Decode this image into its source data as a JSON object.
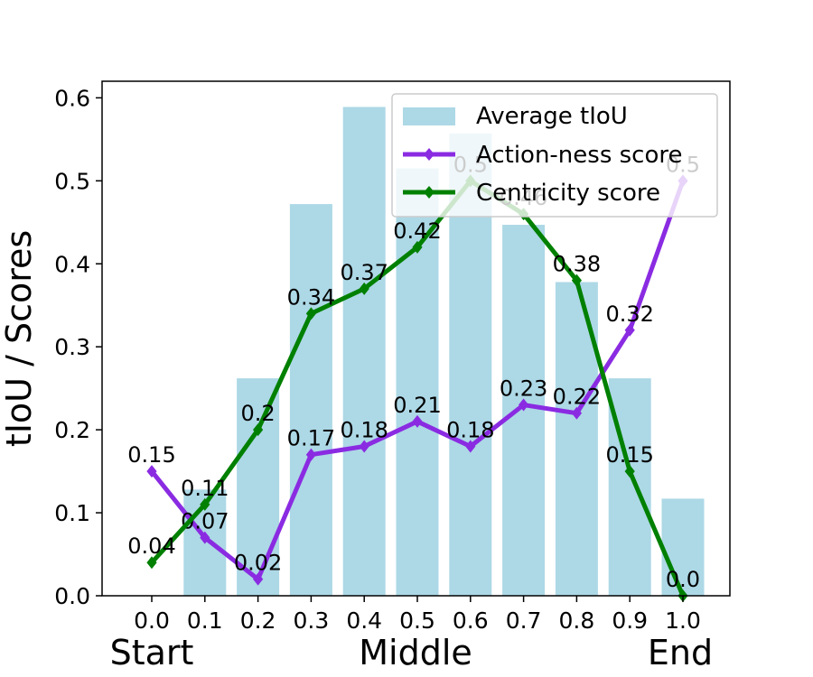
{
  "chart_data": {
    "type": "bar",
    "xlabel": "",
    "ylabel": "tIoU / Scores",
    "x": [
      0.0,
      0.1,
      0.2,
      0.3,
      0.4,
      0.5,
      0.6,
      0.7,
      0.8,
      0.9,
      1.0
    ],
    "x_tick_labels": [
      "0.0",
      "0.1",
      "0.2",
      "0.3",
      "0.4",
      "0.5",
      "0.6",
      "0.7",
      "0.8",
      "0.9",
      "1.0"
    ],
    "x_position_labels": [
      "Start",
      "Middle",
      "End"
    ],
    "ylim": [
      0,
      0.62
    ],
    "y_ticks": [
      0.0,
      0.1,
      0.2,
      0.3,
      0.4,
      0.5,
      0.6
    ],
    "y_tick_labels": [
      "0.0",
      "0.1",
      "0.2",
      "0.3",
      "0.4",
      "0.5",
      "0.6"
    ],
    "grid": false,
    "legend_position": "top-right",
    "series": [
      {
        "name": "Average tIoU",
        "kind": "bar",
        "color": "#add8e6",
        "values": [
          0.0,
          0.128,
          0.262,
          0.472,
          0.589,
          0.515,
          0.557,
          0.447,
          0.378,
          0.262,
          0.117
        ]
      },
      {
        "name": "Action-ness score",
        "kind": "line",
        "marker": "diamond",
        "color": "#8a2be2",
        "values": [
          0.15,
          0.07,
          0.02,
          0.17,
          0.18,
          0.21,
          0.18,
          0.23,
          0.22,
          0.32,
          0.5
        ],
        "labels": [
          "0.15",
          "0.07",
          "0.02",
          "0.17",
          "0.18",
          "0.21",
          "0.18",
          "0.23",
          "0.22",
          "0.32",
          "0.5"
        ]
      },
      {
        "name": "Centricity score",
        "kind": "line",
        "marker": "diamond",
        "color": "#008000",
        "values": [
          0.04,
          0.11,
          0.2,
          0.34,
          0.37,
          0.42,
          0.5,
          0.46,
          0.38,
          0.15,
          0.0
        ],
        "labels": [
          "0.04",
          "0.11",
          "0.2",
          "0.34",
          "0.37",
          "0.42",
          "0.5",
          "0.46",
          "0.38",
          "0.15",
          "0.0"
        ]
      }
    ]
  }
}
